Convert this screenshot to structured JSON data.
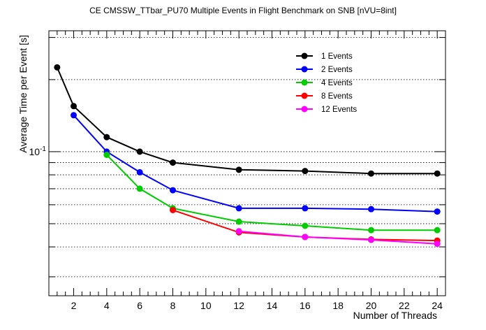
{
  "chart_data": {
    "type": "line",
    "title": "CE CMSSW_TTbar_PU70 Multiple Events in Flight Benchmark on SNB [nVU=8int]",
    "xlabel": "Number of Threads",
    "ylabel": "Average Time per Event [s]",
    "xlim": [
      0.5,
      24.5
    ],
    "ylim": [
      0.025,
      0.32
    ],
    "yscale": "log",
    "xticks": [
      2,
      4,
      6,
      8,
      10,
      12,
      14,
      16,
      18,
      20,
      22,
      24
    ],
    "ytick_label": "10^-1",
    "legend_position": "top-right",
    "grid": "horizontal dotted",
    "series": [
      {
        "name": "1 Events",
        "color": "#000000",
        "x": [
          1,
          2,
          4,
          6,
          8,
          12,
          16,
          20,
          24
        ],
        "y": [
          0.225,
          0.155,
          0.115,
          0.1,
          0.09,
          0.084,
          0.083,
          0.081,
          0.081
        ]
      },
      {
        "name": "2 Events",
        "color": "#0000ff",
        "x": [
          2,
          4,
          6,
          8,
          12,
          16,
          20,
          24
        ],
        "y": [
          0.142,
          0.1,
          0.082,
          0.069,
          0.058,
          0.058,
          0.0575,
          0.0562
        ]
      },
      {
        "name": "4 Events",
        "color": "#00cc00",
        "x": [
          4,
          6,
          8,
          12,
          16,
          20,
          24
        ],
        "y": [
          0.097,
          0.07,
          0.058,
          0.051,
          0.049,
          0.047,
          0.047
        ]
      },
      {
        "name": "8 Events",
        "color": "#ff0000",
        "x": [
          8,
          12,
          16,
          20,
          24
        ],
        "y": [
          0.057,
          0.046,
          0.044,
          0.043,
          0.0425
        ]
      },
      {
        "name": "12 Events",
        "color": "#ff00ff",
        "x": [
          12,
          16,
          20,
          24
        ],
        "y": [
          0.0465,
          0.044,
          0.0428,
          0.0412
        ]
      }
    ]
  }
}
